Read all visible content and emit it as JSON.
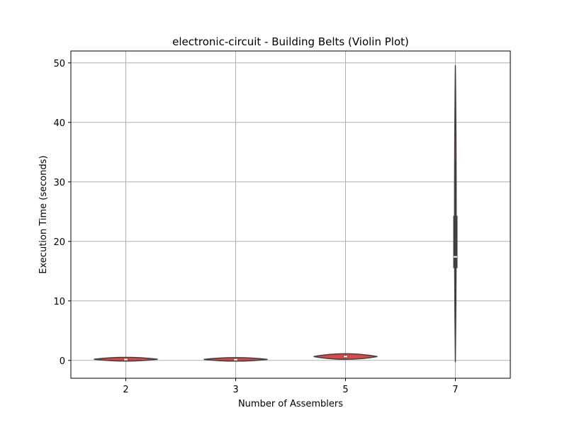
{
  "chart_data": {
    "type": "violin",
    "title": "electronic-circuit - Building Belts (Violin Plot)",
    "xlabel": "Number of Assemblers",
    "ylabel": "Execution Time (seconds)",
    "categories": [
      "2",
      "3",
      "5",
      "7"
    ],
    "ylim": [
      -3,
      52
    ],
    "yticks": [
      0,
      10,
      20,
      30,
      40,
      50
    ],
    "grid": true,
    "violins": [
      {
        "category": "2",
        "min": 0.0,
        "q1": 0.1,
        "median": 0.15,
        "q3": 0.25,
        "max": 0.4,
        "whisker_low": 0.05,
        "whisker_high": 0.35,
        "color": "#d62728"
      },
      {
        "category": "3",
        "min": 0.0,
        "q1": 0.08,
        "median": 0.12,
        "q3": 0.2,
        "max": 0.35,
        "whisker_low": 0.05,
        "whisker_high": 0.3,
        "color": "#d62728"
      },
      {
        "category": "5",
        "min": 0.3,
        "q1": 0.5,
        "median": 0.65,
        "q3": 0.8,
        "max": 1.0,
        "whisker_low": 0.4,
        "whisker_high": 0.9,
        "color": "#d62728"
      },
      {
        "category": "7",
        "min": -0.3,
        "q1": 15.5,
        "median": 17.4,
        "q3": 24.3,
        "max": 49.6,
        "whisker_low": 10.7,
        "whisker_high": 33.5,
        "color": "#d62728"
      }
    ]
  }
}
